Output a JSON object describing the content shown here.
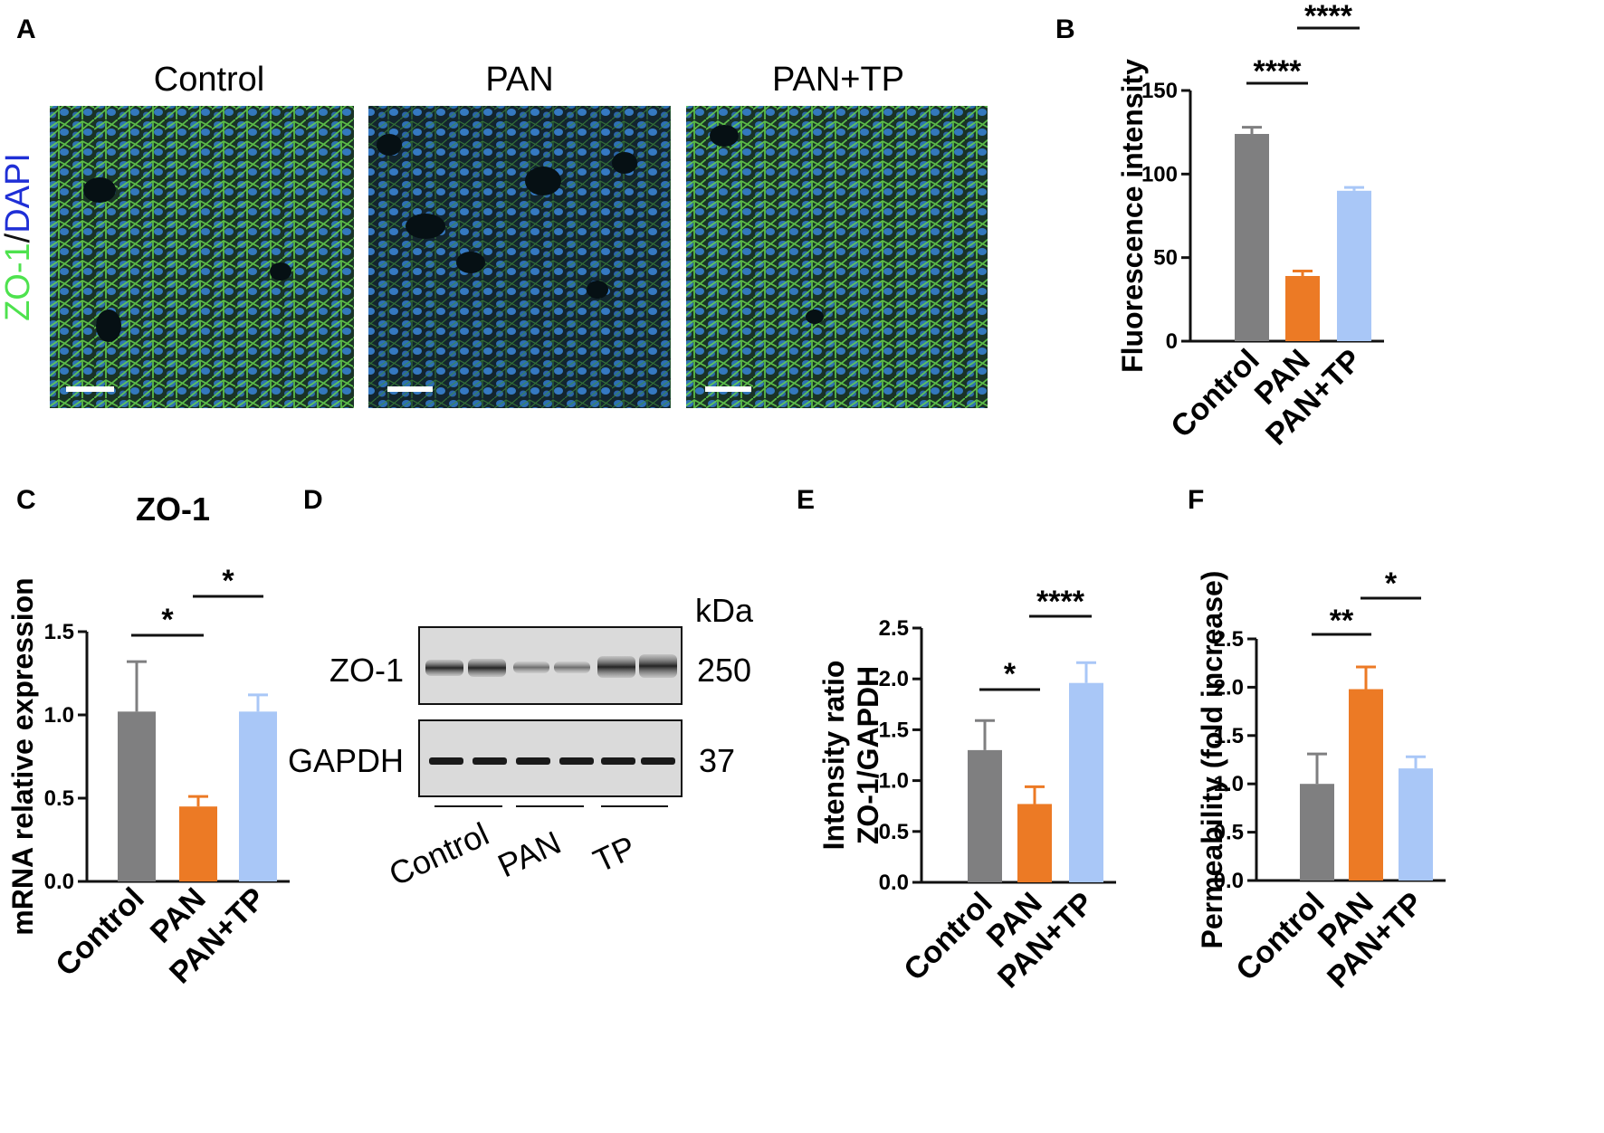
{
  "panels": {
    "A": {
      "label": "A",
      "conditions": [
        "Control",
        "PAN",
        "PAN+TP"
      ],
      "stain_green": "ZO-1",
      "stain_sep": "/",
      "stain_blue": "DAPI"
    },
    "D": {
      "label": "D",
      "unit": "kDa",
      "bands": [
        {
          "name": "ZO-1",
          "kda": "250"
        },
        {
          "name": "GAPDH",
          "kda": "37"
        }
      ],
      "groups": [
        "Control",
        "PAN",
        "TP"
      ]
    }
  },
  "colors": {
    "control": "#7f7f80",
    "pan": "#ec7a25",
    "pantp": "#a9c7f7",
    "dapi_blue": "#1f2fd6",
    "zo1_green": "#4ee24e"
  },
  "chart_data": [
    {
      "panel": "B",
      "type": "bar",
      "categories": [
        "Control",
        "PAN",
        "PAN+TP"
      ],
      "values": [
        124,
        39,
        90
      ],
      "errors": [
        4,
        3,
        2
      ],
      "title": "",
      "ylabel": "Fluorescence intensity",
      "ylim": [
        0,
        150
      ],
      "yticks": [
        0,
        50,
        100,
        150
      ],
      "significance": [
        {
          "from": 0,
          "to": 1,
          "label": "****"
        },
        {
          "from": 1,
          "to": 2,
          "label": "****"
        }
      ]
    },
    {
      "panel": "C",
      "type": "bar",
      "categories": [
        "Control",
        "PAN",
        "PAN+TP"
      ],
      "values": [
        1.02,
        0.45,
        1.02
      ],
      "errors": [
        0.3,
        0.06,
        0.1
      ],
      "title": "ZO-1",
      "ylabel": "mRNA relative expression",
      "ylim": [
        0,
        1.5
      ],
      "yticks": [
        "0.0",
        "0.5",
        "1.0",
        "1.5"
      ],
      "significance": [
        {
          "from": 0,
          "to": 1,
          "label": "*"
        },
        {
          "from": 1,
          "to": 2,
          "label": "*"
        }
      ]
    },
    {
      "panel": "E",
      "type": "bar",
      "categories": [
        "Control",
        "PAN",
        "PAN+TP"
      ],
      "values": [
        1.3,
        0.77,
        1.96
      ],
      "errors": [
        0.29,
        0.17,
        0.2
      ],
      "title": "",
      "ylabel": "Intensity ratio",
      "ylabel2": "ZO-1/GAPDH",
      "ylim": [
        0,
        2.5
      ],
      "yticks": [
        "0.0",
        "0.5",
        "1.0",
        "1.5",
        "2.0",
        "2.5"
      ],
      "significance": [
        {
          "from": 0,
          "to": 1,
          "label": "*"
        },
        {
          "from": 1,
          "to": 2,
          "label": "****"
        }
      ]
    },
    {
      "panel": "F",
      "type": "bar",
      "categories": [
        "Control",
        "PAN",
        "PAN+TP"
      ],
      "values": [
        1.0,
        1.98,
        1.16
      ],
      "errors": [
        0.31,
        0.23,
        0.12
      ],
      "title": "",
      "ylabel": "Permeability (fold increase)",
      "ylim": [
        0,
        2.5
      ],
      "yticks": [
        "0.0",
        "0.5",
        "1.0",
        "1.5",
        "2.0",
        "2.5"
      ],
      "significance": [
        {
          "from": 0,
          "to": 1,
          "label": "**"
        },
        {
          "from": 1,
          "to": 2,
          "label": "*"
        }
      ]
    }
  ]
}
